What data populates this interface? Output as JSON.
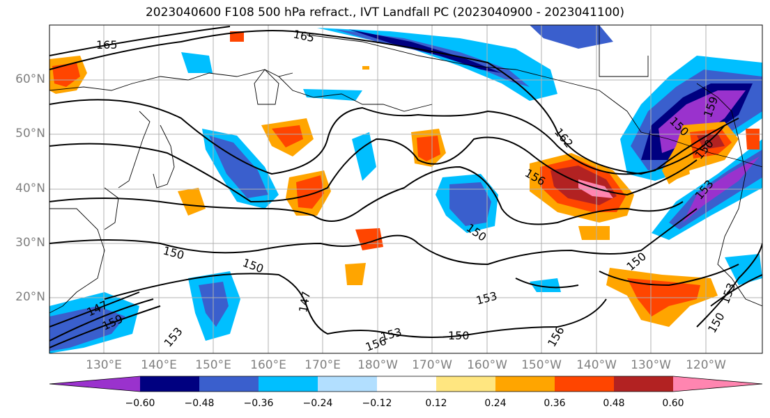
{
  "title": "2023040600 F108 500 hPa refract., IVT Landfall PC (2023040900 - 2023041100)",
  "lat_labels": [
    "60°N",
    "50°N",
    "40°N",
    "30°N",
    "20°N"
  ],
  "lon_labels": [
    "130°E",
    "140°E",
    "150°E",
    "160°E",
    "170°E",
    "180°W",
    "170°W",
    "160°W",
    "150°W",
    "140°W",
    "130°W",
    "120°W"
  ],
  "contour_labels": [
    "165",
    "165",
    "162",
    "156",
    "153",
    "159",
    "150",
    "150",
    "150",
    "150",
    "147",
    "147",
    "159",
    "153",
    "153",
    "150",
    "156",
    "156",
    "153",
    "150",
    "153",
    "150",
    "150"
  ],
  "colorbar": {
    "ticks": [
      "−0.60",
      "−0.48",
      "−0.36",
      "−0.24",
      "−0.12",
      "0.12",
      "0.24",
      "0.36",
      "0.48",
      "0.60"
    ],
    "colors": [
      "#9a32cd",
      "#000080",
      "#3a5fcd",
      "#00bfff",
      "#b2dfff",
      "#ffffff",
      "#ffe680",
      "#ffa500",
      "#ff4500",
      "#b22222",
      "#ff85b0"
    ]
  }
}
